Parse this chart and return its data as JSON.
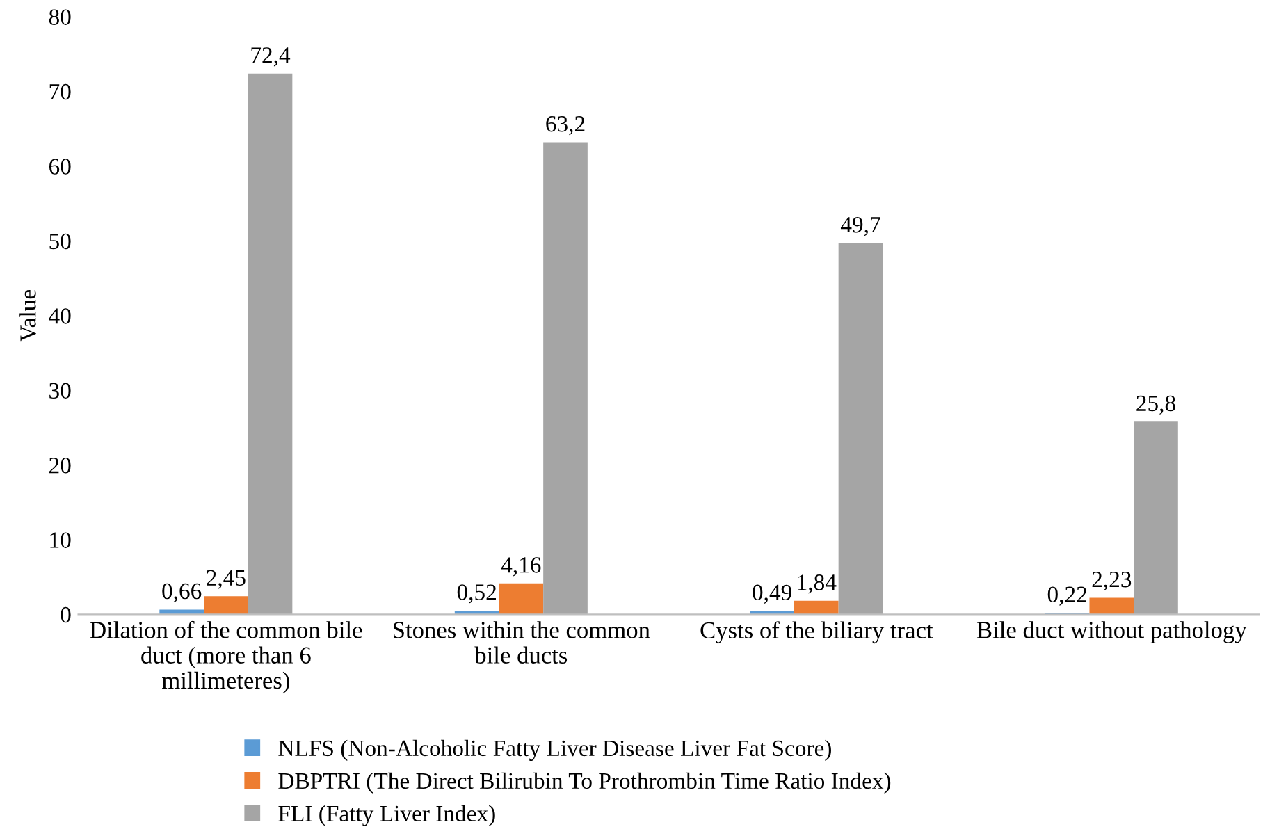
{
  "chart_data": {
    "type": "bar",
    "ylabel": "Value",
    "categories": [
      "Dilation of the common bile\nduct (more than 6\nmillimeteres)",
      "Stones within the common\nbile ducts",
      "Cysts of the biliary tract",
      "Bile duct without pathology"
    ],
    "series": [
      {
        "name": "NLFS (Non-Alcoholic Fatty Liver Disease Liver Fat Score)",
        "color": "#5b9bd5",
        "values": [
          0.66,
          0.52,
          0.49,
          0.22
        ],
        "value_labels": [
          "0,66",
          "0,52",
          "0,49",
          "0,22"
        ]
      },
      {
        "name": "DBPTRI (The Direct Bilirubin To Prothrombin Time Ratio Index)",
        "color": "#ed7d31",
        "values": [
          2.45,
          4.16,
          1.84,
          2.23
        ],
        "value_labels": [
          "2,45",
          "4,16",
          "1,84",
          "2,23"
        ]
      },
      {
        "name": "FLI (Fatty Liver Index)",
        "color": "#a5a5a5",
        "values": [
          72.4,
          63.2,
          49.7,
          25.8
        ],
        "value_labels": [
          "72,4",
          "63,2",
          "49,7",
          "25,8"
        ]
      }
    ],
    "ylim": [
      0,
      80
    ],
    "yticks": [
      0,
      10,
      20,
      30,
      40,
      50,
      60,
      70,
      80
    ],
    "grid": false,
    "legend": "bottom"
  }
}
